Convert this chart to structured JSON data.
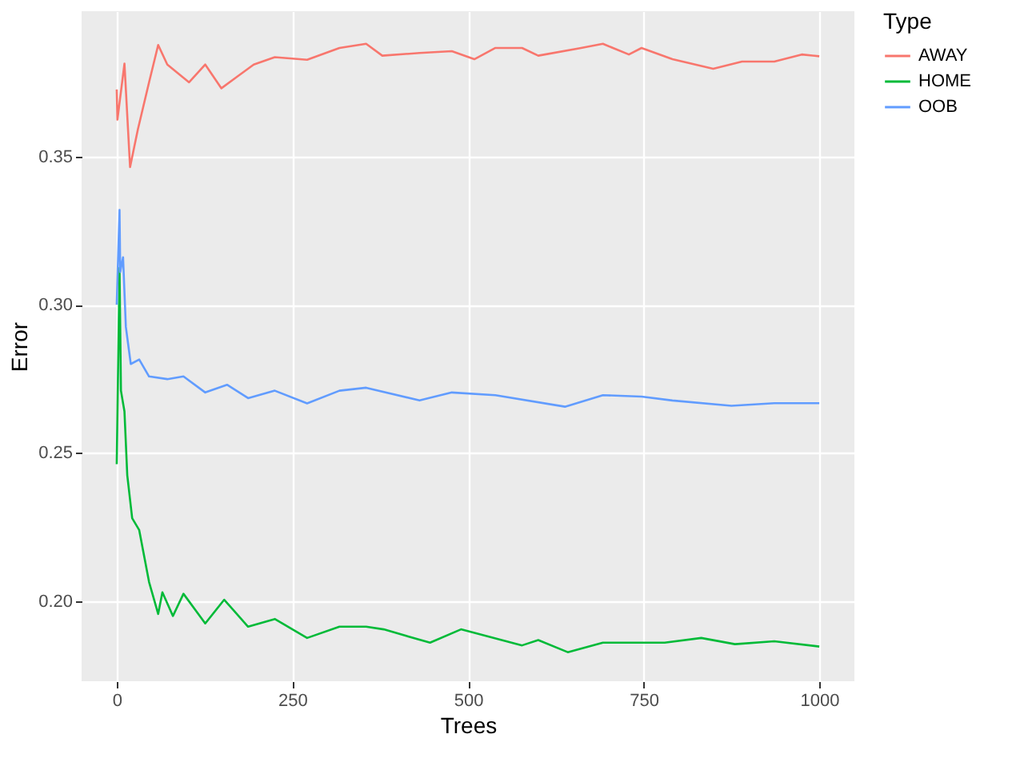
{
  "chart_data": {
    "type": "line",
    "xlabel": "Trees",
    "ylabel": "Error",
    "legend_title": "Type",
    "legend": "right",
    "grid": true,
    "xlim": [
      -50,
      1050
    ],
    "xticks": [
      0,
      250,
      500,
      750,
      1000
    ],
    "ylim": [
      0.173,
      0.399
    ],
    "yticks": [
      {
        "value": 0.2,
        "label": "0.20"
      },
      {
        "value": 0.25,
        "label": "0.25"
      },
      {
        "value": 0.3,
        "label": "0.30"
      },
      {
        "value": 0.35,
        "label": "0.35"
      }
    ],
    "series": [
      {
        "name": "AWAY",
        "color": "#f8766d",
        "x": [
          0,
          1,
          11,
          19,
          30,
          46,
          59,
          72,
          103,
          126,
          149,
          172,
          195,
          225,
          271,
          317,
          355,
          378,
          431,
          477,
          509,
          539,
          577,
          600,
          661,
          692,
          729,
          747,
          791,
          849,
          890,
          936,
          975,
          1000
        ],
        "values": [
          0.3726,
          0.3624,
          0.3813,
          0.3464,
          0.359,
          0.375,
          0.3876,
          0.381,
          0.375,
          0.381,
          0.373,
          0.377,
          0.381,
          0.3835,
          0.3826,
          0.3866,
          0.388,
          0.384,
          0.3849,
          0.3855,
          0.3828,
          0.3866,
          0.3866,
          0.384,
          0.3866,
          0.388,
          0.3844,
          0.3866,
          0.3828,
          0.3796,
          0.382,
          0.382,
          0.3844,
          0.3838
        ]
      },
      {
        "name": "HOME",
        "color": "#00ba38",
        "x": [
          0,
          4,
          6,
          11,
          15,
          22,
          32,
          46,
          59,
          65,
          80,
          95,
          126,
          153,
          187,
          225,
          271,
          317,
          355,
          380,
          446,
          490,
          577,
          600,
          642,
          692,
          780,
          832,
          880,
          936,
          1000
        ],
        "values": [
          0.2462,
          0.3124,
          0.271,
          0.264,
          0.2425,
          0.228,
          0.224,
          0.2065,
          0.1957,
          0.203,
          0.195,
          0.2025,
          0.1925,
          0.2005,
          0.1914,
          0.194,
          0.1876,
          0.1914,
          0.1914,
          0.1905,
          0.186,
          0.1905,
          0.1851,
          0.1869,
          0.1828,
          0.186,
          0.186,
          0.1876,
          0.1855,
          0.1865,
          0.1847
        ]
      },
      {
        "name": "OOB",
        "color": "#619cff",
        "x": [
          0,
          4,
          5,
          9,
          13,
          20,
          32,
          46,
          72,
          95,
          126,
          157,
          187,
          225,
          271,
          317,
          355,
          431,
          477,
          539,
          638,
          692,
          747,
          791,
          875,
          936,
          1000
        ],
        "values": [
          0.3,
          0.332,
          0.311,
          0.316,
          0.2925,
          0.28,
          0.2815,
          0.2758,
          0.2749,
          0.2758,
          0.2704,
          0.273,
          0.2685,
          0.271,
          0.2667,
          0.271,
          0.272,
          0.2677,
          0.2704,
          0.2695,
          0.2656,
          0.2695,
          0.269,
          0.2677,
          0.2659,
          0.2668,
          0.2668
        ]
      }
    ]
  }
}
